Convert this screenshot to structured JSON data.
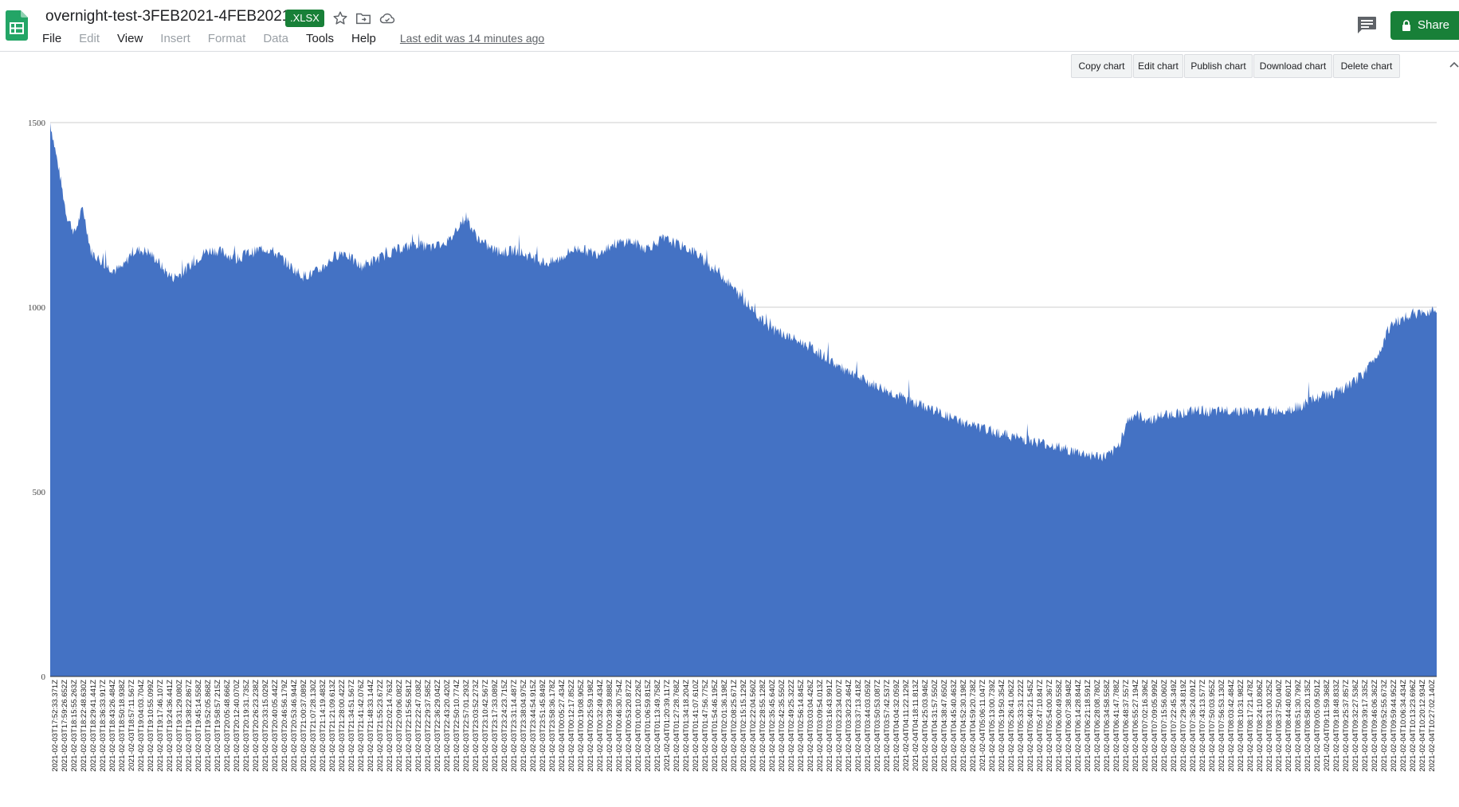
{
  "app": {
    "doc_title": "overnight-test-3FEB2021-4FEB2021",
    "file_type_badge": ".XLSX",
    "last_edit": "Last edit was 14 minutes ago",
    "share_label": "Share",
    "icons": [
      "sheets-logo-icon",
      "star-icon",
      "move-to-folder-icon",
      "cloud-status-icon",
      "comment-icon",
      "lock-icon"
    ]
  },
  "menu": {
    "items": [
      {
        "label": "File",
        "enabled": true
      },
      {
        "label": "Edit",
        "enabled": false
      },
      {
        "label": "View",
        "enabled": true
      },
      {
        "label": "Insert",
        "enabled": false
      },
      {
        "label": "Format",
        "enabled": false
      },
      {
        "label": "Data",
        "enabled": false
      },
      {
        "label": "Tools",
        "enabled": true
      },
      {
        "label": "Help",
        "enabled": true
      }
    ]
  },
  "chart_toolbar": {
    "buttons": [
      "Copy chart",
      "Edit chart",
      "Publish chart",
      "Download chart",
      "Delete chart"
    ]
  },
  "colors": {
    "accent_green": "#188038",
    "series_fill": "#4472c4",
    "gridline": "#cccccc"
  },
  "chart_data": {
    "type": "area",
    "title": "",
    "xlabel": "",
    "ylabel": "",
    "ylim": [
      0,
      1500
    ],
    "yticks": [
      0,
      500,
      1000,
      1500
    ],
    "grid": true,
    "legend": "none",
    "x_time_range": [
      "2021-02-03T17:52:33Z",
      "2021-02-04T10:27:02Z"
    ],
    "x_tick_labels": [
      "2021-02-03T17:52:33.371Z",
      "2021-02-03T17:59:26.652Z",
      "2021-02-03T18:15:55.263Z",
      "2021-02-03T18:22:48.630Z",
      "2021-02-03T18:29:41.441Z",
      "2021-02-03T18:36:33.917Z",
      "2021-02-03T18:43:26.484Z",
      "2021-02-03T18:50:18.938Z",
      "2021-02-03T18:57:11.567Z",
      "2021-02-03T19:04:03.704Z",
      "2021-02-03T19:10:55.099Z",
      "2021-02-03T19:17:46.107Z",
      "2021-02-03T19:24:36.441Z",
      "2021-02-03T19:31:29.080Z",
      "2021-02-03T19:38:22.867Z",
      "2021-02-03T19:45:14.558Z",
      "2021-02-03T19:52:05.868Z",
      "2021-02-03T19:58:57.215Z",
      "2021-02-03T20:05:48.666Z",
      "2021-02-03T20:12:40.070Z",
      "2021-02-03T20:19:31.735Z",
      "2021-02-03T20:26:23.238Z",
      "2021-02-03T20:33:15.029Z",
      "2021-02-03T20:40:05.442Z",
      "2021-02-03T20:46:56.179Z",
      "2021-02-03T20:53:46.944Z",
      "2021-02-03T21:00:37.089Z",
      "2021-02-03T21:07:28.130Z",
      "2021-02-03T21:14:19.483Z",
      "2021-02-03T21:21:09.613Z",
      "2021-02-03T21:28:00.422Z",
      "2021-02-03T21:34:51.567Z",
      "2021-02-03T21:41:42.076Z",
      "2021-02-03T21:48:33.144Z",
      "2021-02-03T21:55:23.672Z",
      "2021-02-03T22:02:14.763Z",
      "2021-02-03T22:09:06.082Z",
      "2021-02-03T22:15:56.581Z",
      "2021-02-03T22:22:47.038Z",
      "2021-02-03T22:29:37.585Z",
      "2021-02-03T22:36:29.042Z",
      "2021-02-03T22:43:20.420Z",
      "2021-02-03T22:50:10.774Z",
      "2021-02-03T22:57:01.293Z",
      "2021-02-03T23:03:52.273Z",
      "2021-02-03T23:10:42.567Z",
      "2021-02-03T23:17:33.089Z",
      "2021-02-03T23:24:23.715Z",
      "2021-02-03T23:31:14.487Z",
      "2021-02-03T23:38:04.975Z",
      "2021-02-03T23:44:54.915Z",
      "2021-02-03T23:51:45.849Z",
      "2021-02-03T23:58:36.178Z",
      "2021-02-04T00:05:27.434Z",
      "2021-02-04T00:12:17.852Z",
      "2021-02-04T00:19:08.905Z",
      "2021-02-04T00:25:59.198Z",
      "2021-02-04T00:32:49.434Z",
      "2021-02-04T00:39:39.888Z",
      "2021-02-04T00:46:30.754Z",
      "2021-02-04T00:53:20.872Z",
      "2021-02-04T01:00:10.226Z",
      "2021-02-04T01:06:59.815Z",
      "2021-02-04T01:13:49.758Z",
      "2021-02-04T01:20:39.117Z",
      "2021-02-04T01:27:28.768Z",
      "2021-02-04T01:34:18.204Z",
      "2021-02-04T01:41:07.610Z",
      "2021-02-04T01:47:56.775Z",
      "2021-02-04T01:54:46.195Z",
      "2021-02-04T02:01:36.198Z",
      "2021-02-04T02:08:25.671Z",
      "2021-02-04T02:15:15.129Z",
      "2021-02-04T02:22:04.560Z",
      "2021-02-04T02:28:55.128Z",
      "2021-02-04T02:35:45.640Z",
      "2021-02-04T02:42:35.550Z",
      "2021-02-04T02:49:25.322Z",
      "2021-02-04T02:56:14.845Z",
      "2021-02-04T03:03:04.426Z",
      "2021-02-04T03:09:54.013Z",
      "2021-02-04T03:16:43.991Z",
      "2021-02-04T03:23:34.007Z",
      "2021-02-04T03:30:23.464Z",
      "2021-02-04T03:37:13.418Z",
      "2021-02-04T03:44:03.059Z",
      "2021-02-04T03:50:53.087Z",
      "2021-02-04T03:57:42.537Z",
      "2021-02-04T04:04:32.059Z",
      "2021-02-04T04:11:22.129Z",
      "2021-02-04T04:18:11.813Z",
      "2021-02-04T04:25:03.946Z",
      "2021-02-04T04:31:57.550Z",
      "2021-02-04T04:38:47.650Z",
      "2021-02-04T04:45:40.463Z",
      "2021-02-04T04:52:30.198Z",
      "2021-02-04T04:59:20.738Z",
      "2021-02-04T05:06:11.047Z",
      "2021-02-04T05:13:00.739Z",
      "2021-02-04T05:19:50.354Z",
      "2021-02-04T05:26:41.062Z",
      "2021-02-04T05:33:31.222Z",
      "2021-02-04T05:40:21.545Z",
      "2021-02-04T05:47:10.847Z",
      "2021-02-04T05:54:00.367Z",
      "2021-02-04T06:00:49.558Z",
      "2021-02-04T06:07:38.948Z",
      "2021-02-04T06:14:28.844Z",
      "2021-02-04T06:21:18.591Z",
      "2021-02-04T06:28:08.780Z",
      "2021-02-04T06:34:58.558Z",
      "2021-02-04T06:41:47.788Z",
      "2021-02-04T06:48:37.557Z",
      "2021-02-04T06:55:27.194Z",
      "2021-02-04T07:02:16.396Z",
      "2021-02-04T07:09:05.999Z",
      "2021-02-04T07:15:56.060Z",
      "2021-02-04T07:22:45.349Z",
      "2021-02-04T07:29:34.819Z",
      "2021-02-04T07:36:24.091Z",
      "2021-02-04T07:43:13.577Z",
      "2021-02-04T07:50:03.955Z",
      "2021-02-04T07:56:53.130Z",
      "2021-02-04T08:03:42.484Z",
      "2021-02-04T08:10:31.982Z",
      "2021-02-04T08:17:21.478Z",
      "2021-02-04T08:24:10.806Z",
      "2021-02-04T08:31:00.325Z",
      "2021-02-04T08:37:50.040Z",
      "2021-02-04T08:44:40.601Z",
      "2021-02-04T08:51:30.799Z",
      "2021-02-04T08:58:20.135Z",
      "2021-02-04T09:05:09.501Z",
      "2021-02-04T09:11:59.368Z",
      "2021-02-04T09:18:48.833Z",
      "2021-02-04T09:25:37.857Z",
      "2021-02-04T09:32:27.536Z",
      "2021-02-04T09:39:17.335Z",
      "2021-02-04T09:46:06.362Z",
      "2021-02-04T09:52:55.673Z",
      "2021-02-04T09:59:44.952Z",
      "2021-02-04T10:06:34.434Z",
      "2021-02-04T10:13:23.696Z",
      "2021-02-04T10:20:12.934Z",
      "2021-02-04T10:27:02.140Z"
    ],
    "series": [
      {
        "values": [
          1500,
          1380,
          1250,
          1200,
          1270,
          1150,
          1130,
          1110,
          1100,
          1110,
          1150,
          1155,
          1150,
          1130,
          1100,
          1080,
          1090,
          1110,
          1130,
          1150,
          1155,
          1150,
          1140,
          1130,
          1145,
          1150,
          1160,
          1155,
          1140,
          1120,
          1100,
          1085,
          1090,
          1100,
          1120,
          1140,
          1150,
          1130,
          1110,
          1120,
          1130,
          1140,
          1150,
          1160,
          1165,
          1170,
          1165,
          1160,
          1175,
          1180,
          1220,
          1245,
          1200,
          1175,
          1160,
          1150,
          1150,
          1155,
          1145,
          1135,
          1125,
          1120,
          1125,
          1140,
          1155,
          1160,
          1150,
          1145,
          1160,
          1170,
          1175,
          1180,
          1170,
          1160,
          1170,
          1185,
          1180,
          1170,
          1160,
          1150,
          1130,
          1110,
          1095,
          1070,
          1045,
          1020,
          1000,
          970,
          950,
          935,
          925,
          915,
          905,
          895,
          880,
          865,
          850,
          835,
          820,
          810,
          800,
          790,
          780,
          770,
          760,
          750,
          740,
          733,
          725,
          715,
          705,
          695,
          688,
          680,
          673,
          667,
          662,
          656,
          650,
          645,
          640,
          635,
          630,
          625,
          618,
          612,
          607,
          602,
          598,
          595,
          600,
          625,
          690,
          710,
          700,
          695,
          705,
          710,
          712,
          715,
          718,
          720,
          718,
          715,
          720,
          722,
          720,
          718,
          715,
          718,
          720,
          722,
          725,
          730,
          740,
          752,
          760,
          765,
          770,
          785,
          800,
          820,
          850,
          880,
          940,
          960,
          970,
          985,
          980,
          990,
          1000
        ]
      }
    ],
    "x_values_note": "values sampled evenly across x_time_range"
  }
}
